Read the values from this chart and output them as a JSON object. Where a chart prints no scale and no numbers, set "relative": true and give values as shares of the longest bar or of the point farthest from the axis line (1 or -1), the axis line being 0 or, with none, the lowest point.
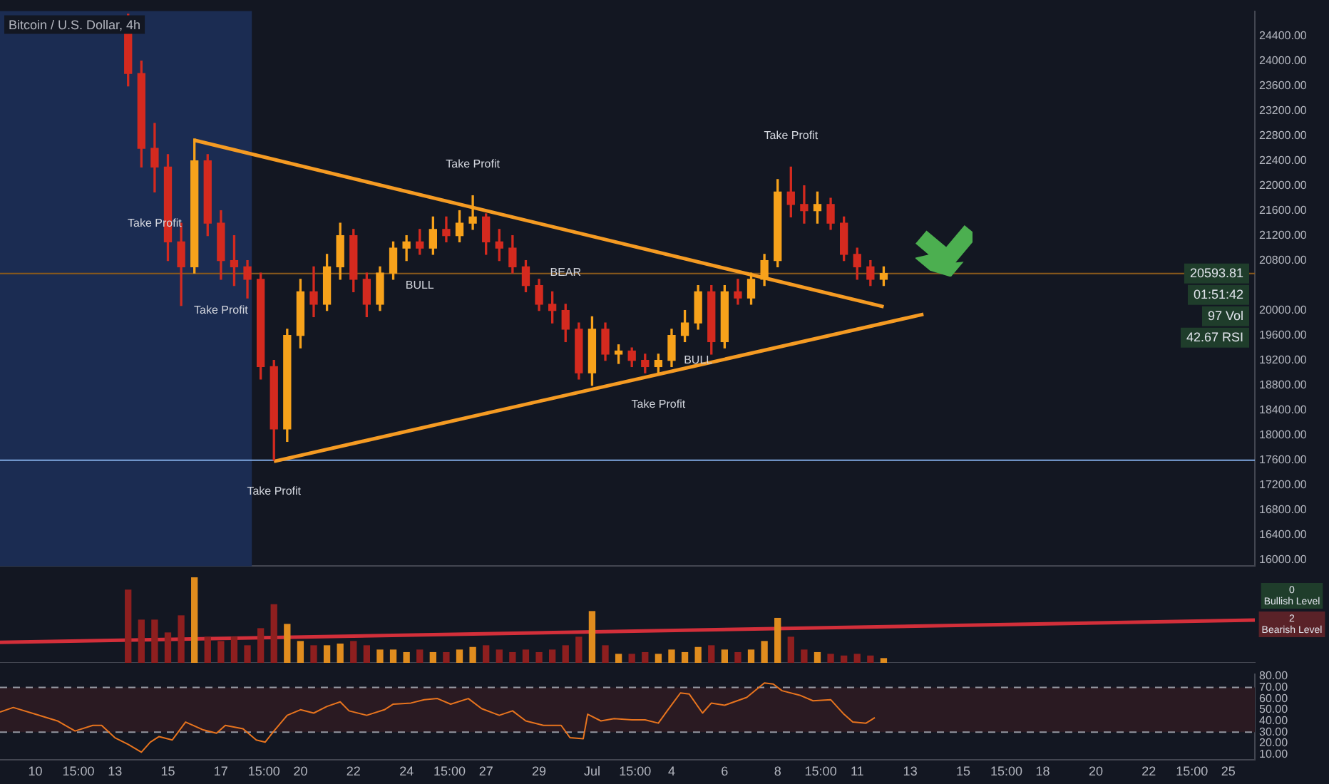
{
  "chart_data": [
    {
      "type": "candlestick",
      "title": "Bitcoin / U.S. Dollar, 4h",
      "x": [
        "--06-13T12:00",
        "--06-14T00:00",
        "--06-14T12:00",
        "--06-15T00:00",
        "--06-15T12:00",
        "--06-16T00:00",
        "--06-16T12:00",
        "--06-17T00:00",
        "--06-17T12:00",
        "--06-18T00:00",
        "--06-18T12:00",
        "--06-19T00:00",
        "--06-19T12:00",
        "--06-20T00:00",
        "--06-20T12:00",
        "--06-21T00:00",
        "--06-21T12:00",
        "--06-22T00:00",
        "--06-22T12:00",
        "--06-23T00:00",
        "--06-23T12:00",
        "--06-24T00:00",
        "--06-24T12:00",
        "--06-25T00:00",
        "--06-25T12:00",
        "--06-26T00:00",
        "--06-26T12:00",
        "--06-27T00:00",
        "--06-27T12:00",
        "--06-28T00:00",
        "--06-28T12:00",
        "--06-29T00:00",
        "--06-29T12:00",
        "--06-30T00:00",
        "--06-30T12:00",
        "--07-01T00:00",
        "--07-01T12:00",
        "--07-02T00:00",
        "--07-02T12:00",
        "--07-03T00:00",
        "--07-03T12:00",
        "--07-04T00:00",
        "--07-04T12:00",
        "--07-05T00:00",
        "--07-05T12:00",
        "--07-06T00:00",
        "--07-06T12:00",
        "--07-07T00:00",
        "--07-07T12:00",
        "--07-08T00:00",
        "--07-08T12:00",
        "--07-09T00:00",
        "--07-09T12:00",
        "--07-10T00:00",
        "--07-10T12:00",
        "--07-11T00:00",
        "--07-11T12:00",
        "--07-12T00:00"
      ],
      "ohlc": [
        [
          24700,
          24750,
          23600,
          23800
        ],
        [
          23800,
          24000,
          22300,
          22600
        ],
        [
          22600,
          23000,
          21900,
          22300
        ],
        [
          22300,
          22500,
          20800,
          21100
        ],
        [
          21100,
          21400,
          20080,
          20700
        ],
        [
          20700,
          22750,
          20600,
          22400
        ],
        [
          22400,
          22500,
          21200,
          21400
        ],
        [
          21400,
          21600,
          20500,
          20800
        ],
        [
          20800,
          21200,
          20400,
          20700
        ],
        [
          20700,
          20800,
          20200,
          20500
        ],
        [
          20500,
          20600,
          18900,
          19100
        ],
        [
          19100,
          19200,
          17600,
          18100
        ],
        [
          18100,
          19700,
          17900,
          19600
        ],
        [
          19600,
          20500,
          19400,
          20300
        ],
        [
          20300,
          20700,
          19900,
          20100
        ],
        [
          20100,
          20900,
          20000,
          20700
        ],
        [
          20700,
          21400,
          20500,
          21200
        ],
        [
          21200,
          21300,
          20300,
          20500
        ],
        [
          20500,
          20600,
          19900,
          20100
        ],
        [
          20100,
          20700,
          20000,
          20600
        ],
        [
          20600,
          21100,
          20500,
          21000
        ],
        [
          21000,
          21200,
          20800,
          21100
        ],
        [
          21100,
          21300,
          20900,
          21000
        ],
        [
          21000,
          21500,
          20900,
          21300
        ],
        [
          21300,
          21500,
          21100,
          21200
        ],
        [
          21200,
          21600,
          21100,
          21400
        ],
        [
          21400,
          21840,
          21300,
          21500
        ],
        [
          21500,
          21550,
          20900,
          21100
        ],
        [
          21100,
          21300,
          20800,
          21000
        ],
        [
          21000,
          21200,
          20600,
          20700
        ],
        [
          20700,
          20800,
          20300,
          20400
        ],
        [
          20400,
          20500,
          20000,
          20100
        ],
        [
          20100,
          20300,
          19800,
          20000
        ],
        [
          20000,
          20100,
          19500,
          19700
        ],
        [
          19700,
          19800,
          18900,
          19000
        ],
        [
          19000,
          19900,
          18800,
          19700
        ],
        [
          19700,
          19800,
          19200,
          19300
        ],
        [
          19300,
          19450,
          19150,
          19350
        ],
        [
          19350,
          19400,
          19100,
          19200
        ],
        [
          19200,
          19300,
          19000,
          19100
        ],
        [
          19100,
          19300,
          19000,
          19200
        ],
        [
          19200,
          19700,
          19100,
          19600
        ],
        [
          19600,
          20000,
          19500,
          19800
        ],
        [
          19800,
          20400,
          19700,
          20300
        ],
        [
          20300,
          20400,
          19300,
          19500
        ],
        [
          19500,
          20400,
          19400,
          20300
        ],
        [
          20300,
          20500,
          20100,
          20200
        ],
        [
          20200,
          20600,
          20100,
          20500
        ],
        [
          20500,
          20900,
          20400,
          20800
        ],
        [
          20800,
          22100,
          20700,
          21900
        ],
        [
          21900,
          22300,
          21500,
          21700
        ],
        [
          21700,
          22000,
          21400,
          21600
        ],
        [
          21600,
          21900,
          21400,
          21700
        ],
        [
          21700,
          21800,
          21300,
          21400
        ],
        [
          21400,
          21500,
          20800,
          20900
        ],
        [
          20900,
          21000,
          20500,
          20700
        ],
        [
          20700,
          20800,
          20400,
          20500
        ],
        [
          20500,
          20700,
          20400,
          20593.81
        ]
      ],
      "colors": [
        "#d42a1f",
        "#d42a1f",
        "#d42a1f",
        "#d42a1f",
        "#d42a1f",
        "#f7a21b",
        "#d42a1f",
        "#d42a1f",
        "#d42a1f",
        "#d42a1f",
        "#d42a1f",
        "#d42a1f",
        "#f7a21b",
        "#f7a21b",
        "#d42a1f",
        "#f7a21b",
        "#f7a21b",
        "#d42a1f",
        "#d42a1f",
        "#f7a21b",
        "#f7a21b",
        "#f7a21b",
        "#d42a1f",
        "#f7a21b",
        "#d42a1f",
        "#f7a21b",
        "#f7a21b",
        "#d42a1f",
        "#d42a1f",
        "#d42a1f",
        "#d42a1f",
        "#d42a1f",
        "#d42a1f",
        "#d42a1f",
        "#d42a1f",
        "#f7a21b",
        "#d42a1f",
        "#f7a21b",
        "#d42a1f",
        "#d42a1f",
        "#f7a21b",
        "#f7a21b",
        "#f7a21b",
        "#f7a21b",
        "#d42a1f",
        "#f7a21b",
        "#d42a1f",
        "#f7a21b",
        "#f7a21b",
        "#f7a21b",
        "#d42a1f",
        "#d42a1f",
        "#f7a21b",
        "#d42a1f",
        "#d42a1f",
        "#d42a1f",
        "#d42a1f",
        "#f7a21b"
      ],
      "series": [
        {
          "type": "line",
          "color": "#f59b23",
          "x": [
            "--06-16T00:00",
            "--07-12T00:00"
          ],
          "values": [
            22730,
            20060
          ]
        },
        {
          "type": "line",
          "color": "#f59b23",
          "x": [
            "--06-19T00:00",
            "--07-13T12:00"
          ],
          "values": [
            17580,
            19940
          ]
        }
      ],
      "xlim": [
        "--06-08T16:00",
        "--07-26T00:00"
      ],
      "ylim": [
        15900,
        24800
      ],
      "yticks": [
        {
          "value": 16000,
          "label": "16000.00"
        },
        {
          "value": 16400,
          "label": "16400.00"
        },
        {
          "value": 16800,
          "label": "16800.00"
        },
        {
          "value": 17200,
          "label": "17200.00"
        },
        {
          "value": 17600,
          "label": "17600.00"
        },
        {
          "value": 18000,
          "label": "18000.00"
        },
        {
          "value": 18400,
          "label": "18400.00"
        },
        {
          "value": 18800,
          "label": "18800.00"
        },
        {
          "value": 19200,
          "label": "19200.00"
        },
        {
          "value": 19600,
          "label": "19600.00"
        },
        {
          "value": 20000,
          "label": "20000.00"
        },
        {
          "value": 20800,
          "label": "20800.00"
        },
        {
          "value": 21200,
          "label": "21200.00"
        },
        {
          "value": 21600,
          "label": "21600.00"
        },
        {
          "value": 22000,
          "label": "22000.00"
        },
        {
          "value": 22400,
          "label": "22400.00"
        },
        {
          "value": 22800,
          "label": "22800.00"
        },
        {
          "value": 23200,
          "label": "23200.00"
        },
        {
          "value": 23600,
          "label": "23600.00"
        },
        {
          "value": 24000,
          "label": "24000.00"
        },
        {
          "value": 24400,
          "label": "24400.00"
        }
      ],
      "tick_labels": "y",
      "ref_lines": [
        {
          "axis": "y",
          "value": 17600,
          "color": "#7fa8e0"
        },
        {
          "axis": "y",
          "value": 20593.81,
          "color": "#8a5a1c"
        }
      ],
      "bands": [
        {
          "axis": "x",
          "from": "--06-08T16:00",
          "to": "--06-18T04:00",
          "color": "#1b2c52"
        }
      ],
      "annotations": [
        {
          "text": "Take Profit",
          "x": "--06-14T12:00",
          "y": 21900
        },
        {
          "text": "Take Profit",
          "x": "--06-17T00:00",
          "y": 20500
        },
        {
          "text": "Take Profit",
          "x": "--06-26T12:00",
          "y": 21840
        },
        {
          "text": "Take Profit",
          "x": "--07-03T12:00",
          "y": 19000
        },
        {
          "text": "Take Profit",
          "x": "--07-08T12:00",
          "y": 22300
        },
        {
          "text": "Take Profit",
          "x": "--06-19T00:00",
          "y": 17600
        },
        {
          "text": "BULL",
          "x": "--06-24T12:00",
          "y": 20900
        },
        {
          "text": "BULL",
          "x": "--07-05T00:00",
          "y": 19700
        },
        {
          "text": "BEAR",
          "x": "--06-30T00:00",
          "y": 20100
        },
        "20593.81",
        "01:51:42",
        "97 Vol",
        "42.67 RSI"
      ]
    },
    {
      "type": "bar",
      "relative": true,
      "x": [
        "--06-13T12:00",
        "--06-14T00:00",
        "--06-14T12:00",
        "--06-15T00:00",
        "--06-15T12:00",
        "--06-16T00:00",
        "--06-16T12:00",
        "--06-17T00:00",
        "--06-17T12:00",
        "--06-18T00:00",
        "--06-18T12:00",
        "--06-19T00:00",
        "--06-19T12:00",
        "--06-20T00:00",
        "--06-20T12:00",
        "--06-21T00:00",
        "--06-21T12:00",
        "--06-22T00:00",
        "--06-22T12:00",
        "--06-23T00:00",
        "--06-23T12:00",
        "--06-24T00:00",
        "--06-24T12:00",
        "--06-25T00:00",
        "--06-25T12:00",
        "--06-26T00:00",
        "--06-26T12:00",
        "--06-27T00:00",
        "--06-27T12:00",
        "--06-28T00:00",
        "--06-28T12:00",
        "--06-29T00:00",
        "--06-29T12:00",
        "--06-30T00:00",
        "--06-30T12:00",
        "--07-01T00:00",
        "--07-01T12:00",
        "--07-02T00:00",
        "--07-02T12:00",
        "--07-03T00:00",
        "--07-03T12:00",
        "--07-04T00:00",
        "--07-04T12:00",
        "--07-05T00:00",
        "--07-05T12:00",
        "--07-06T00:00",
        "--07-06T12:00",
        "--07-07T00:00",
        "--07-07T12:00",
        "--07-08T00:00",
        "--07-08T12:00",
        "--07-09T00:00",
        "--07-09T12:00",
        "--07-10T00:00",
        "--07-10T12:00",
        "--07-11T00:00",
        "--07-11T12:00",
        "--07-12T00:00"
      ],
      "series": [
        {
          "colors": [
            "#8e1f1f",
            "#8e1f1f",
            "#8e1f1f",
            "#8e1f1f",
            "#8e1f1f",
            "#e08c1e",
            "#8e1f1f",
            "#8e1f1f",
            "#8e1f1f",
            "#8e1f1f",
            "#8e1f1f",
            "#8e1f1f",
            "#e08c1e",
            "#e08c1e",
            "#8e1f1f",
            "#e08c1e",
            "#e08c1e",
            "#8e1f1f",
            "#8e1f1f",
            "#e08c1e",
            "#e08c1e",
            "#e08c1e",
            "#8e1f1f",
            "#e08c1e",
            "#8e1f1f",
            "#e08c1e",
            "#e08c1e",
            "#8e1f1f",
            "#8e1f1f",
            "#8e1f1f",
            "#8e1f1f",
            "#8e1f1f",
            "#8e1f1f",
            "#8e1f1f",
            "#8e1f1f",
            "#e08c1e",
            "#8e1f1f",
            "#e08c1e",
            "#8e1f1f",
            "#8e1f1f",
            "#e08c1e",
            "#e08c1e",
            "#e08c1e",
            "#e08c1e",
            "#8e1f1f",
            "#e08c1e",
            "#8e1f1f",
            "#e08c1e",
            "#e08c1e",
            "#e08c1e",
            "#8e1f1f",
            "#8e1f1f",
            "#e08c1e",
            "#8e1f1f",
            "#8e1f1f",
            "#8e1f1f",
            "#8e1f1f",
            "#e08c1e"
          ],
          "values": [
            0.85,
            0.5,
            0.5,
            0.35,
            0.55,
            1,
            0.3,
            0.25,
            0.3,
            0.2,
            0.4,
            0.68,
            0.45,
            0.25,
            0.2,
            0.2,
            0.22,
            0.25,
            0.2,
            0.15,
            0.15,
            0.12,
            0.15,
            0.12,
            0.12,
            0.15,
            0.18,
            0.2,
            0.15,
            0.12,
            0.15,
            0.12,
            0.15,
            0.2,
            0.3,
            0.6,
            0.2,
            0.1,
            0.1,
            0.12,
            0.1,
            0.15,
            0.12,
            0.18,
            0.2,
            0.15,
            0.12,
            0.15,
            0.25,
            0.52,
            0.3,
            0.15,
            0.12,
            0.1,
            0.08,
            0.1,
            0.08,
            0.05
          ]
        },
        {
          "type": "line",
          "color": "#d32f3a",
          "x": [
            "--06-08T16:00",
            "--07-26T00:00"
          ],
          "values": [
            0.24,
            0.5
          ]
        }
      ],
      "xlim": [
        "--06-08T16:00",
        "--07-26T00:00"
      ],
      "tick_labels": false,
      "annotations": [
        "0 Bullish Level",
        "2 Bearish Level"
      ]
    },
    {
      "type": "line",
      "x": [
        "--06-08T16:00",
        "--06-09T04:00",
        "--06-10T00:00",
        "--06-10T20:00",
        "--06-11T12:00",
        "--06-12T04:00",
        "--06-12T12:00",
        "--06-13T00:00",
        "--06-13T12:00",
        "--06-14T00:00",
        "--06-14T08:00",
        "--06-14T16:00",
        "--06-15T04:00",
        "--06-15T16:00",
        "--06-16T08:00",
        "--06-16T20:00",
        "--06-17T04:00",
        "--06-17T20:00",
        "--06-18T08:00",
        "--06-18T16:00",
        "--06-19T00:00",
        "--06-19T12:00",
        "--06-20T00:00",
        "--06-20T12:00",
        "--06-21T00:00",
        "--06-21T12:00",
        "--06-21T20:00",
        "--06-22T12:00",
        "--06-23T04:00",
        "--06-23T12:00",
        "--06-24T04:00",
        "--06-24T16:00",
        "--06-25T04:00",
        "--06-25T16:00",
        "--06-26T08:00",
        "--06-26T20:00",
        "--06-27T12:00",
        "--06-28T00:00",
        "--06-28T12:00",
        "--06-29T04:00",
        "--06-29T20:00",
        "--06-30T04:00",
        "--06-30T16:00",
        "--06-30T20:00",
        "--07-01T08:00",
        "--07-01T20:00",
        "--07-02T12:00",
        "--07-03T00:00",
        "--07-03T12:00",
        "--07-03T20:00",
        "--07-04T08:00",
        "--07-04T16:00",
        "--07-05T04:00",
        "--07-05T12:00",
        "--07-06T00:00",
        "--07-06T20:00",
        "--07-07T12:00",
        "--07-07T20:00",
        "--07-08T04:00",
        "--07-08T20:00",
        "--07-09T08:00",
        "--07-10T00:00",
        "--07-10T12:00",
        "--07-10T20:00",
        "--07-11T08:00",
        "--07-11T16:00"
      ],
      "series": [
        {
          "color": "#e8741e",
          "values": [
            48,
            52,
            46,
            40,
            31,
            36,
            36,
            25,
            19,
            12,
            21,
            26,
            23,
            39,
            32,
            29,
            36,
            33,
            23,
            21,
            31,
            45,
            50,
            47,
            53,
            57,
            49,
            45,
            50,
            55,
            56,
            59,
            60,
            55,
            60,
            51,
            45,
            49,
            40,
            36,
            36,
            25,
            24,
            46,
            40,
            42,
            41,
            41,
            38,
            49,
            65,
            64,
            47,
            56,
            54,
            61,
            74,
            73,
            67,
            63,
            58,
            59,
            46,
            39,
            38,
            43
          ]
        }
      ],
      "xlim": [
        "--06-08T16:00",
        "--07-26T00:00"
      ],
      "xticks": [
        {
          "value": "--06-10",
          "label": "10"
        },
        {
          "value": "--06-11T15:00",
          "label": "15:00"
        },
        {
          "value": "--06-13",
          "label": "13"
        },
        {
          "value": "--06-15",
          "label": "15"
        },
        {
          "value": "--06-17",
          "label": "17"
        },
        {
          "value": "--06-18T15:00",
          "label": "15:00"
        },
        {
          "value": "--06-20",
          "label": "20"
        },
        {
          "value": "--06-22",
          "label": "22"
        },
        {
          "value": "--06-24",
          "label": "24"
        },
        {
          "value": "--06-25T15:00",
          "label": "15:00"
        },
        {
          "value": "--06-27",
          "label": "27"
        },
        {
          "value": "--06-29",
          "label": "29"
        },
        {
          "value": "--07-01",
          "label": "Jul"
        },
        {
          "value": "--07-02T15:00",
          "label": "15:00"
        },
        {
          "value": "--07-04",
          "label": "4"
        },
        {
          "value": "--07-06",
          "label": "6"
        },
        {
          "value": "--07-08",
          "label": "8"
        },
        {
          "value": "--07-09T15:00",
          "label": "15:00"
        },
        {
          "value": "--07-11",
          "label": "11"
        },
        {
          "value": "--07-13",
          "label": "13"
        },
        {
          "value": "--07-15",
          "label": "15"
        },
        {
          "value": "--07-16T15:00",
          "label": "15:00"
        },
        {
          "value": "--07-18",
          "label": "18"
        },
        {
          "value": "--07-20",
          "label": "20"
        },
        {
          "value": "--07-22",
          "label": "22"
        },
        {
          "value": "--07-23T15:00",
          "label": "15:00"
        },
        {
          "value": "--07-25",
          "label": "25"
        }
      ],
      "ylim": [
        5,
        82
      ],
      "yticks": [
        {
          "value": 10,
          "label": "10.00"
        },
        {
          "value": 20,
          "label": "20.00"
        },
        {
          "value": 30,
          "label": "30.00"
        },
        {
          "value": 40,
          "label": "40.00"
        },
        {
          "value": 50,
          "label": "50.00"
        },
        {
          "value": 60,
          "label": "60.00"
        },
        {
          "value": 70,
          "label": "70.00"
        },
        {
          "value": 80,
          "label": "80.00"
        }
      ],
      "ref_lines": [
        {
          "axis": "y",
          "value": 70,
          "color": "#9598a1",
          "line_style": "dashed"
        },
        {
          "axis": "y",
          "value": 30,
          "color": "#9598a1",
          "line_style": "dashed"
        }
      ],
      "bands": [
        {
          "axis": "y",
          "from": 30,
          "to": 70,
          "color": "#2a1a22"
        }
      ]
    }
  ]
}
